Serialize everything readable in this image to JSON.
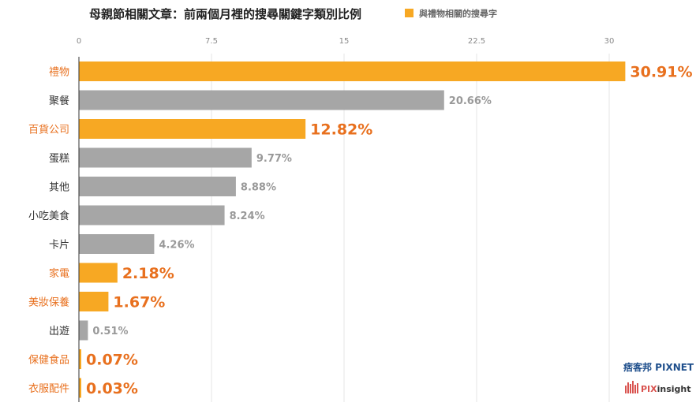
{
  "chart_data": {
    "type": "bar",
    "orientation": "horizontal",
    "title": "母親節相關文章：前兩個月裡的搜尋關鍵字類別比例",
    "legend": {
      "label": "與禮物相關的搜尋字",
      "placement": "top"
    },
    "xlim": [
      0,
      30
    ],
    "xticks": [
      "0",
      "7.5",
      "15",
      "22.5",
      "30"
    ],
    "grid": true,
    "categories": [
      "禮物",
      "聚餐",
      "百貨公司",
      "蛋糕",
      "其他",
      "小吃美食",
      "卡片",
      "家電",
      "美妝保養",
      "出遊",
      "保健食品",
      "衣服配件"
    ],
    "values": [
      30.91,
      20.66,
      12.82,
      9.77,
      8.88,
      8.24,
      4.26,
      2.18,
      1.67,
      0.51,
      0.07,
      0.03
    ],
    "value_labels": [
      "30.91%",
      "20.66%",
      "12.82%",
      "9.77%",
      "8.88%",
      "8.24%",
      "4.26%",
      "2.18%",
      "1.67%",
      "0.51%",
      "0.07%",
      "0.03%"
    ],
    "highlight": [
      true,
      false,
      true,
      false,
      false,
      false,
      false,
      true,
      true,
      false,
      true,
      true
    ],
    "colors": {
      "highlight": "#F7A823",
      "normal": "#A6A6A6",
      "highlight_text": "#E8701E",
      "normal_text": "#333333",
      "normal_value": "#999999"
    }
  },
  "branding": {
    "pixnet": "痞客邦 PIXNET",
    "pixinsight_pix": "PIX",
    "pixinsight_rest": "insight"
  }
}
